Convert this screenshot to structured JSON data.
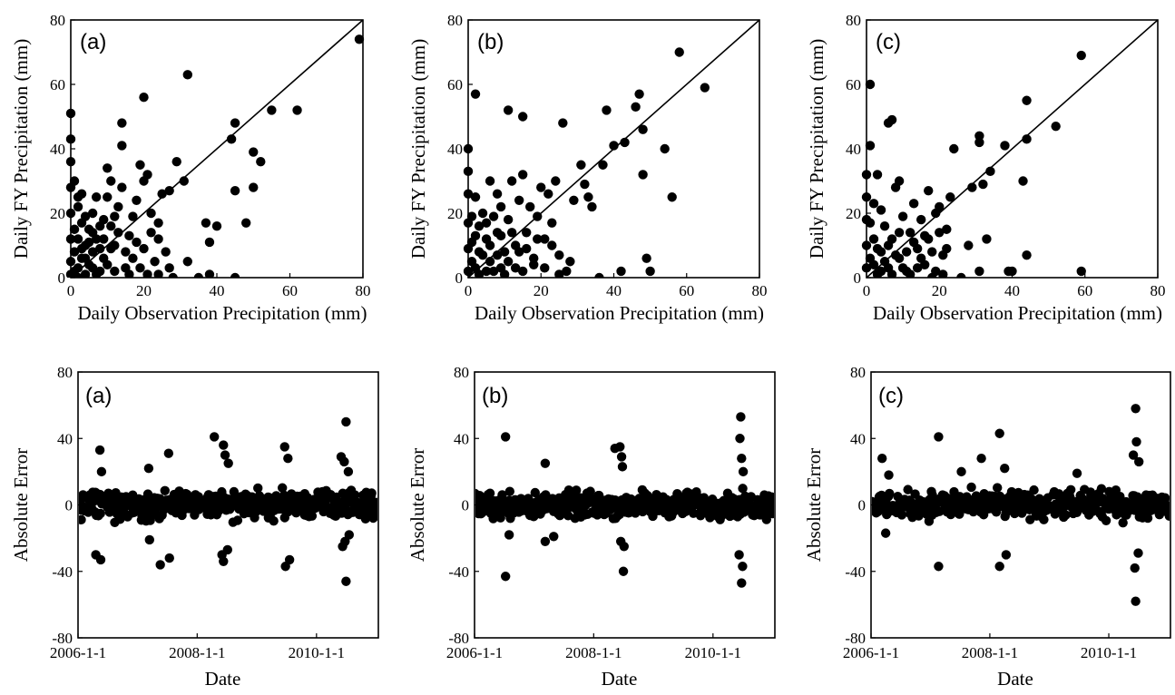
{
  "chart_data": [
    {
      "type": "scatter",
      "panel_label": "(a)",
      "xlabel": "Daily Observation Precipitation (mm)",
      "ylabel": "Daily FY Precipitation (mm)",
      "xlim": [
        0,
        80
      ],
      "ylim": [
        0,
        80
      ],
      "xticks": [
        "0",
        "20",
        "40",
        "60",
        "80"
      ],
      "yticks": [
        "0",
        "20",
        "40",
        "60",
        "80"
      ],
      "reference_line": "1:1",
      "points": [
        [
          79,
          74
        ],
        [
          62,
          52
        ],
        [
          55,
          52
        ],
        [
          52,
          36
        ],
        [
          50,
          39
        ],
        [
          50,
          28
        ],
        [
          48,
          17
        ],
        [
          45,
          48
        ],
        [
          44,
          43
        ],
        [
          45,
          27
        ],
        [
          45,
          0
        ],
        [
          40,
          16
        ],
        [
          38,
          11
        ],
        [
          37,
          17
        ],
        [
          38,
          1
        ],
        [
          35,
          0
        ],
        [
          32,
          63
        ],
        [
          31,
          30
        ],
        [
          29,
          36
        ],
        [
          32,
          5
        ],
        [
          28,
          0
        ],
        [
          27,
          27
        ],
        [
          25,
          26
        ],
        [
          24,
          17
        ],
        [
          24,
          12
        ],
        [
          23,
          5
        ],
        [
          22,
          20
        ],
        [
          21,
          32
        ],
        [
          20,
          56
        ],
        [
          20,
          30
        ],
        [
          19,
          35
        ],
        [
          18,
          24
        ],
        [
          17,
          19
        ],
        [
          16,
          13
        ],
        [
          15,
          8
        ],
        [
          14,
          48
        ],
        [
          14,
          41
        ],
        [
          14,
          28
        ],
        [
          13,
          22
        ],
        [
          12,
          19
        ],
        [
          12,
          10
        ],
        [
          11,
          30
        ],
        [
          10,
          34
        ],
        [
          10,
          25
        ],
        [
          9,
          18
        ],
        [
          9,
          6
        ],
        [
          8,
          16
        ],
        [
          8,
          2
        ],
        [
          7,
          12
        ],
        [
          7,
          25
        ],
        [
          6,
          8
        ],
        [
          6,
          20
        ],
        [
          5,
          4
        ],
        [
          5,
          15
        ],
        [
          4,
          10
        ],
        [
          4,
          1
        ],
        [
          3,
          17
        ],
        [
          3,
          6
        ],
        [
          3,
          26
        ],
        [
          2,
          12
        ],
        [
          2,
          3
        ],
        [
          2,
          22
        ],
        [
          1,
          8
        ],
        [
          1,
          30
        ],
        [
          1,
          15
        ],
        [
          0,
          51
        ],
        [
          0,
          43
        ],
        [
          0,
          36
        ],
        [
          0,
          28
        ],
        [
          0,
          20
        ],
        [
          0,
          12
        ],
        [
          0,
          5
        ],
        [
          0,
          1
        ],
        [
          1,
          2
        ],
        [
          2,
          0
        ],
        [
          4,
          6
        ],
        [
          6,
          3
        ],
        [
          7,
          1
        ],
        [
          9,
          12
        ],
        [
          10,
          4
        ],
        [
          11,
          9
        ],
        [
          12,
          2
        ],
        [
          13,
          14
        ],
        [
          15,
          3
        ],
        [
          16,
          1
        ],
        [
          17,
          6
        ],
        [
          18,
          11
        ],
        [
          19,
          3
        ],
        [
          20,
          9
        ],
        [
          21,
          1
        ],
        [
          22,
          14
        ],
        [
          24,
          1
        ],
        [
          26,
          8
        ],
        [
          27,
          3
        ],
        [
          5,
          11
        ],
        [
          3,
          9
        ],
        [
          8,
          9
        ],
        [
          11,
          16
        ],
        [
          6,
          14
        ],
        [
          4,
          19
        ],
        [
          2,
          25
        ]
      ]
    },
    {
      "type": "scatter",
      "panel_label": "(b)",
      "xlabel": "Daily Observation Precipitation (mm)",
      "ylabel": "Daily FY Precipitation (mm)",
      "xlim": [
        0,
        80
      ],
      "ylim": [
        0,
        80
      ],
      "xticks": [
        "0",
        "20",
        "40",
        "60",
        "80"
      ],
      "yticks": [
        "0",
        "20",
        "40",
        "60",
        "80"
      ],
      "reference_line": "1:1",
      "points": [
        [
          65,
          59
        ],
        [
          58,
          70
        ],
        [
          56,
          25
        ],
        [
          54,
          40
        ],
        [
          50,
          2
        ],
        [
          49,
          6
        ],
        [
          48,
          46
        ],
        [
          48,
          32
        ],
        [
          47,
          57
        ],
        [
          46,
          53
        ],
        [
          43,
          42
        ],
        [
          42,
          2
        ],
        [
          40,
          41
        ],
        [
          38,
          52
        ],
        [
          37,
          35
        ],
        [
          36,
          0
        ],
        [
          34,
          22
        ],
        [
          33,
          25
        ],
        [
          32,
          29
        ],
        [
          31,
          35
        ],
        [
          29,
          24
        ],
        [
          28,
          5
        ],
        [
          27,
          2
        ],
        [
          26,
          48
        ],
        [
          25,
          7
        ],
        [
          24,
          30
        ],
        [
          23,
          17
        ],
        [
          22,
          26
        ],
        [
          21,
          12
        ],
        [
          20,
          28
        ],
        [
          19,
          19
        ],
        [
          18,
          6
        ],
        [
          17,
          22
        ],
        [
          16,
          14
        ],
        [
          15,
          50
        ],
        [
          15,
          32
        ],
        [
          14,
          24
        ],
        [
          13,
          10
        ],
        [
          12,
          30
        ],
        [
          11,
          52
        ],
        [
          11,
          18
        ],
        [
          10,
          8
        ],
        [
          9,
          22
        ],
        [
          9,
          3
        ],
        [
          8,
          14
        ],
        [
          8,
          26
        ],
        [
          7,
          19
        ],
        [
          6,
          5
        ],
        [
          6,
          30
        ],
        [
          5,
          12
        ],
        [
          5,
          2
        ],
        [
          4,
          20
        ],
        [
          3,
          8
        ],
        [
          3,
          16
        ],
        [
          2,
          57
        ],
        [
          2,
          25
        ],
        [
          2,
          3
        ],
        [
          1,
          11
        ],
        [
          1,
          19
        ],
        [
          0,
          40
        ],
        [
          0,
          33
        ],
        [
          0,
          26
        ],
        [
          0,
          17
        ],
        [
          0,
          9
        ],
        [
          0,
          2
        ],
        [
          1,
          5
        ],
        [
          2,
          13
        ],
        [
          3,
          1
        ],
        [
          4,
          7
        ],
        [
          5,
          17
        ],
        [
          6,
          10
        ],
        [
          7,
          2
        ],
        [
          8,
          7
        ],
        [
          9,
          13
        ],
        [
          10,
          1
        ],
        [
          11,
          5
        ],
        [
          12,
          14
        ],
        [
          13,
          3
        ],
        [
          14,
          8
        ],
        [
          15,
          2
        ],
        [
          16,
          9
        ],
        [
          18,
          4
        ],
        [
          19,
          12
        ],
        [
          21,
          3
        ],
        [
          23,
          10
        ],
        [
          25,
          1
        ]
      ]
    },
    {
      "type": "scatter",
      "panel_label": "(c)",
      "xlabel": "Daily Observation Precipitation (mm)",
      "ylabel": "Daily FY Precipitation (mm)",
      "xlim": [
        0,
        80
      ],
      "ylim": [
        0,
        80
      ],
      "xticks": [
        "0",
        "20",
        "40",
        "60",
        "80"
      ],
      "yticks": [
        "0",
        "20",
        "40",
        "60",
        "80"
      ],
      "reference_line": "1:1",
      "points": [
        [
          59,
          69
        ],
        [
          59,
          2
        ],
        [
          52,
          47
        ],
        [
          44,
          55
        ],
        [
          44,
          43
        ],
        [
          44,
          7
        ],
        [
          43,
          30
        ],
        [
          40,
          2
        ],
        [
          39,
          2
        ],
        [
          38,
          41
        ],
        [
          34,
          33
        ],
        [
          33,
          12
        ],
        [
          32,
          29
        ],
        [
          31,
          44
        ],
        [
          31,
          42
        ],
        [
          31,
          2
        ],
        [
          29,
          28
        ],
        [
          28,
          10
        ],
        [
          26,
          0
        ],
        [
          24,
          40
        ],
        [
          23,
          25
        ],
        [
          22,
          15
        ],
        [
          21,
          7
        ],
        [
          20,
          22
        ],
        [
          19,
          20
        ],
        [
          18,
          0
        ],
        [
          17,
          12
        ],
        [
          17,
          27
        ],
        [
          16,
          4
        ],
        [
          15,
          18
        ],
        [
          14,
          9
        ],
        [
          13,
          23
        ],
        [
          12,
          14
        ],
        [
          11,
          2
        ],
        [
          10,
          19
        ],
        [
          9,
          30
        ],
        [
          9,
          6
        ],
        [
          8,
          28
        ],
        [
          7,
          49
        ],
        [
          7,
          12
        ],
        [
          6,
          48
        ],
        [
          6,
          3
        ],
        [
          5,
          16
        ],
        [
          4,
          21
        ],
        [
          4,
          8
        ],
        [
          3,
          32
        ],
        [
          3,
          1
        ],
        [
          2,
          12
        ],
        [
          2,
          23
        ],
        [
          1,
          60
        ],
        [
          1,
          41
        ],
        [
          1,
          6
        ],
        [
          1,
          17
        ],
        [
          0,
          32
        ],
        [
          0,
          25
        ],
        [
          0,
          18
        ],
        [
          0,
          10
        ],
        [
          0,
          3
        ],
        [
          2,
          4
        ],
        [
          3,
          9
        ],
        [
          4,
          2
        ],
        [
          5,
          5
        ],
        [
          6,
          10
        ],
        [
          7,
          1
        ],
        [
          8,
          7
        ],
        [
          9,
          14
        ],
        [
          10,
          3
        ],
        [
          11,
          8
        ],
        [
          12,
          1
        ],
        [
          13,
          11
        ],
        [
          14,
          3
        ],
        [
          15,
          6
        ],
        [
          16,
          13
        ],
        [
          18,
          8
        ],
        [
          19,
          2
        ],
        [
          20,
          14
        ],
        [
          21,
          1
        ],
        [
          22,
          9
        ]
      ]
    },
    {
      "type": "scatter",
      "panel_label": "(a)",
      "xlabel": "Date",
      "ylabel": "Absolute Error",
      "ylim": [
        -80,
        80
      ],
      "yticks": [
        "-80",
        "-40",
        "0",
        "40",
        "80"
      ],
      "xticks": [
        "2006-1-1",
        "2008-1-1",
        "2010-1-1"
      ],
      "x_domain": [
        "2006-1-1",
        "2011-1-15"
      ],
      "spikes": [
        [
          "2006-5-15",
          33
        ],
        [
          "2006-5-20",
          -33
        ],
        [
          "2006-4-20",
          -30
        ],
        [
          "2006-5-25",
          20
        ],
        [
          "2007-3-10",
          22
        ],
        [
          "2007-3-15",
          -21
        ],
        [
          "2007-5-20",
          -36
        ],
        [
          "2007-7-10",
          31
        ],
        [
          "2007-7-15",
          -32
        ],
        [
          "2008-4-15",
          41
        ],
        [
          "2008-6-10",
          36
        ],
        [
          "2008-6-10",
          -34
        ],
        [
          "2008-6-20",
          30
        ],
        [
          "2008-7-5",
          -27
        ],
        [
          "2008-6-1",
          -30
        ],
        [
          "2008-7-10",
          25
        ],
        [
          "2009-6-20",
          35
        ],
        [
          "2009-6-25",
          -37
        ],
        [
          "2009-7-20",
          -33
        ],
        [
          "2009-7-10",
          28
        ],
        [
          "2010-6-1",
          29
        ],
        [
          "2010-6-10",
          -25
        ],
        [
          "2010-7-1",
          50
        ],
        [
          "2010-7-1",
          -46
        ],
        [
          "2010-6-20",
          26
        ],
        [
          "2010-6-25",
          -22
        ],
        [
          "2010-7-15",
          20
        ],
        [
          "2010-7-20",
          -18
        ]
      ],
      "noise_amplitude": 12
    },
    {
      "type": "scatter",
      "panel_label": "(b)",
      "xlabel": "Date",
      "ylabel": "Absolute Error",
      "ylim": [
        -80,
        80
      ],
      "yticks": [
        "-80",
        "-40",
        "0",
        "40",
        "80"
      ],
      "xticks": [
        "2006-1-1",
        "2008-1-1",
        "2010-1-1"
      ],
      "x_domain": [
        "2006-1-1",
        "2011-1-15"
      ],
      "spikes": [
        [
          "2006-7-10",
          41
        ],
        [
          "2006-7-10",
          -43
        ],
        [
          "2006-8-1",
          -18
        ],
        [
          "2007-3-10",
          25
        ],
        [
          "2007-3-10",
          -22
        ],
        [
          "2007-5-1",
          -19
        ],
        [
          "2008-5-10",
          34
        ],
        [
          "2008-6-10",
          35
        ],
        [
          "2008-6-20",
          29
        ],
        [
          "2008-6-25",
          23
        ],
        [
          "2008-7-1",
          -40
        ],
        [
          "2008-7-5",
          -25
        ],
        [
          "2008-6-15",
          -22
        ],
        [
          "2010-6-20",
          53
        ],
        [
          "2010-6-25",
          -47
        ],
        [
          "2010-7-1",
          -37
        ],
        [
          "2010-6-10",
          -30
        ],
        [
          "2010-6-25",
          28
        ],
        [
          "2010-7-5",
          20
        ],
        [
          "2010-6-15",
          40
        ]
      ],
      "noise_amplitude": 11
    },
    {
      "type": "scatter",
      "panel_label": "(c)",
      "xlabel": "Date",
      "ylabel": "Absolute Error",
      "ylim": [
        -80,
        80
      ],
      "yticks": [
        "-80",
        "-40",
        "0",
        "40",
        "80"
      ],
      "xticks": [
        "2006-1-1",
        "2008-1-1",
        "2010-1-1"
      ],
      "x_domain": [
        "2006-1-1",
        "2011-1-15"
      ],
      "spikes": [
        [
          "2006-3-10",
          28
        ],
        [
          "2006-4-1",
          -17
        ],
        [
          "2006-4-20",
          18
        ],
        [
          "2007-2-20",
          41
        ],
        [
          "2007-2-20",
          -37
        ],
        [
          "2007-7-10",
          20
        ],
        [
          "2007-11-10",
          28
        ],
        [
          "2008-3-1",
          43
        ],
        [
          "2008-3-1",
          -37
        ],
        [
          "2008-4-10",
          -30
        ],
        [
          "2008-4-1",
          22
        ],
        [
          "2009-6-20",
          19
        ],
        [
          "2010-6-15",
          58
        ],
        [
          "2010-6-15",
          -58
        ],
        [
          "2010-6-20",
          38
        ],
        [
          "2010-6-10",
          -38
        ],
        [
          "2010-7-1",
          -29
        ],
        [
          "2010-7-5",
          26
        ],
        [
          "2010-6-1",
          30
        ]
      ],
      "noise_amplitude": 12
    }
  ]
}
